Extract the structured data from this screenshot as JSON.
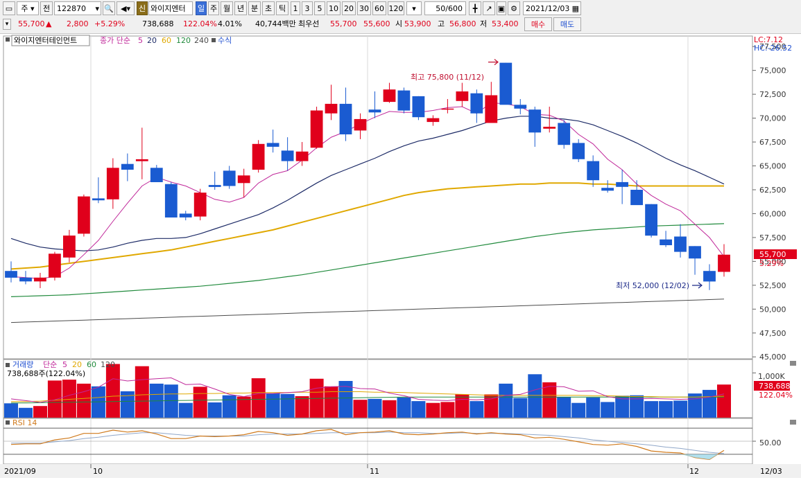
{
  "toolbar": {
    "market": "주",
    "prev": "전",
    "code": "122870",
    "sin": "신",
    "name": "와이지엔터",
    "periods": [
      "일",
      "주",
      "월",
      "년",
      "분",
      "초",
      "틱"
    ],
    "active_period": "일",
    "intervals": [
      "1",
      "3",
      "5",
      "10",
      "20",
      "30",
      "60",
      "120"
    ],
    "count": "50/600",
    "date": "2021/12/03",
    "buy": "매수",
    "sell": "매도"
  },
  "quote": {
    "price": "55,700",
    "arrow": "▲",
    "change": "2,800",
    "change_pct": "+5.29%",
    "volume": "738,688",
    "volume_pct": "122.04%",
    "turnover_pct": "4.01%",
    "amount": "40,744백만",
    "best_label": "최우선",
    "best_ask": "55,700",
    "best_bid": "55,600",
    "open_label": "시",
    "open": "53,900",
    "high_label": "고",
    "high": "56,800",
    "low_label": "저",
    "low": "53,400"
  },
  "price_panel": {
    "stock_label": "와이지엔터테인먼트",
    "indicator_label": "종가 단순",
    "ma_periods": [
      "5",
      "20",
      "60",
      "120",
      "240"
    ],
    "formula_label": "수식",
    "lc_label": "LC:7.12",
    "hc_label": "HC:-26.52",
    "current_price_label": "55,700",
    "current_pct_label": "5.29%",
    "high_annotation": "최고 75,800 (11/12)",
    "low_annotation": "최저 52,000 (12/02)"
  },
  "volume_panel": {
    "title": "거래량",
    "ma_label": "단순",
    "ma_periods": [
      "5",
      "20",
      "60",
      "120"
    ],
    "subtitle": "738,688주(122.04%)",
    "axis_label": "1,000K",
    "current_label": "738,688",
    "current_pct": "122.04%"
  },
  "rsi_panel": {
    "title": "RSI 14",
    "axis_label": "50.00"
  },
  "colors": {
    "up": "#e0001b",
    "down": "#1a5bd1",
    "ma5": "#c0289a",
    "ma20": "#1c2a66",
    "ma60": "#e0a800",
    "ma120": "#208a3c",
    "ma240": "#4a4a4a",
    "rsi": "#d07a1c"
  },
  "chart_data": {
    "type": "candlestick",
    "x_labels": [
      "2021/09",
      "10",
      "11",
      "12",
      "12/03"
    ],
    "y_ticks": [
      77500,
      75000,
      72500,
      70000,
      67500,
      65000,
      62500,
      60000,
      57500,
      55000,
      52500,
      50000,
      47500,
      45000
    ],
    "ylim": [
      44800,
      78600
    ],
    "candles": [
      {
        "o": 54000,
        "h": 55000,
        "l": 52800,
        "c": 53300
      },
      {
        "o": 53300,
        "h": 54000,
        "l": 52600,
        "c": 52900
      },
      {
        "o": 52900,
        "h": 53800,
        "l": 52200,
        "c": 53300
      },
      {
        "o": 53300,
        "h": 56000,
        "l": 53000,
        "c": 55800
      },
      {
        "o": 55400,
        "h": 58300,
        "l": 54900,
        "c": 57700
      },
      {
        "o": 57900,
        "h": 62000,
        "l": 57600,
        "c": 61800
      },
      {
        "o": 61600,
        "h": 63800,
        "l": 61100,
        "c": 61400
      },
      {
        "o": 61500,
        "h": 65800,
        "l": 60500,
        "c": 64800
      },
      {
        "o": 65200,
        "h": 66300,
        "l": 63400,
        "c": 64600
      },
      {
        "o": 65500,
        "h": 69000,
        "l": 63600,
        "c": 65700
      },
      {
        "o": 64800,
        "h": 65100,
        "l": 63300,
        "c": 63300
      },
      {
        "o": 63100,
        "h": 63300,
        "l": 59600,
        "c": 59600
      },
      {
        "o": 60000,
        "h": 60300,
        "l": 59300,
        "c": 59600
      },
      {
        "o": 59700,
        "h": 62600,
        "l": 59300,
        "c": 62200
      },
      {
        "o": 63000,
        "h": 64400,
        "l": 62500,
        "c": 62800
      },
      {
        "o": 64500,
        "h": 65000,
        "l": 62600,
        "c": 62900
      },
      {
        "o": 63200,
        "h": 64700,
        "l": 61700,
        "c": 64000
      },
      {
        "o": 64600,
        "h": 67700,
        "l": 64300,
        "c": 67300
      },
      {
        "o": 67400,
        "h": 68800,
        "l": 66400,
        "c": 67000
      },
      {
        "o": 66600,
        "h": 68000,
        "l": 64500,
        "c": 65500
      },
      {
        "o": 65500,
        "h": 67500,
        "l": 65000,
        "c": 66500
      },
      {
        "o": 66900,
        "h": 71200,
        "l": 66800,
        "c": 70800
      },
      {
        "o": 70500,
        "h": 73500,
        "l": 69800,
        "c": 71500
      },
      {
        "o": 71500,
        "h": 73200,
        "l": 67600,
        "c": 68300
      },
      {
        "o": 68700,
        "h": 70500,
        "l": 67800,
        "c": 69900
      },
      {
        "o": 70900,
        "h": 72800,
        "l": 70000,
        "c": 70600
      },
      {
        "o": 71700,
        "h": 73700,
        "l": 71600,
        "c": 73000
      },
      {
        "o": 72900,
        "h": 73200,
        "l": 70500,
        "c": 70800
      },
      {
        "o": 72300,
        "h": 72300,
        "l": 69800,
        "c": 70100
      },
      {
        "o": 69600,
        "h": 70300,
        "l": 69200,
        "c": 70000
      },
      {
        "o": 71000,
        "h": 72000,
        "l": 70500,
        "c": 71000
      },
      {
        "o": 71800,
        "h": 73700,
        "l": 71200,
        "c": 72800
      },
      {
        "o": 72600,
        "h": 73000,
        "l": 69500,
        "c": 70500
      },
      {
        "o": 69500,
        "h": 73800,
        "l": 69500,
        "c": 72400
      },
      {
        "o": 75800,
        "h": 75800,
        "l": 71700,
        "c": 71400
      },
      {
        "o": 71400,
        "h": 72000,
        "l": 70400,
        "c": 71000
      },
      {
        "o": 70900,
        "h": 71200,
        "l": 67000,
        "c": 68500
      },
      {
        "o": 68900,
        "h": 71200,
        "l": 68500,
        "c": 69100
      },
      {
        "o": 69500,
        "h": 69800,
        "l": 66800,
        "c": 67200
      },
      {
        "o": 67400,
        "h": 67800,
        "l": 65400,
        "c": 65700
      },
      {
        "o": 65500,
        "h": 66100,
        "l": 62800,
        "c": 63500
      },
      {
        "o": 62700,
        "h": 63500,
        "l": 62200,
        "c": 62400
      },
      {
        "o": 63300,
        "h": 64600,
        "l": 61000,
        "c": 62800
      },
      {
        "o": 62500,
        "h": 63500,
        "l": 60900,
        "c": 60900
      },
      {
        "o": 61000,
        "h": 61000,
        "l": 57500,
        "c": 57700
      },
      {
        "o": 57300,
        "h": 58200,
        "l": 56500,
        "c": 56700
      },
      {
        "o": 57600,
        "h": 58900,
        "l": 55400,
        "c": 56000
      },
      {
        "o": 56600,
        "h": 56600,
        "l": 53600,
        "c": 55300
      },
      {
        "o": 54000,
        "h": 54700,
        "l": 52000,
        "c": 52900
      },
      {
        "o": 53900,
        "h": 56800,
        "l": 53400,
        "c": 55700
      }
    ],
    "ma5": [
      53400,
      53300,
      53200,
      53400,
      54300,
      55700,
      57200,
      59200,
      61100,
      62900,
      63800,
      63300,
      62900,
      62200,
      61500,
      61200,
      61700,
      63200,
      64100,
      64500,
      65600,
      66900,
      68000,
      68600,
      69400,
      70100,
      70700,
      70600,
      70600,
      70800,
      71100,
      71200,
      70500,
      71600,
      71500,
      71200,
      70400,
      70300,
      69700,
      68300,
      67300,
      65700,
      64600,
      63100,
      61900,
      61000,
      60300,
      58900,
      57500,
      55500
    ],
    "ma20": [
      57400,
      56900,
      56500,
      56300,
      56200,
      56100,
      56200,
      56500,
      56900,
      57200,
      57400,
      57400,
      57500,
      57900,
      58400,
      58900,
      59400,
      59900,
      60600,
      61400,
      62300,
      63200,
      64000,
      64600,
      65200,
      65800,
      66500,
      67100,
      67600,
      67900,
      68300,
      68700,
      69200,
      69700,
      70000,
      70200,
      70200,
      70000,
      69900,
      69700,
      69300,
      68700,
      68100,
      67400,
      66600,
      65800,
      65100,
      64500,
      63800,
      63100
    ],
    "ma60": [
      54200,
      54300,
      54400,
      54600,
      54800,
      55000,
      55200,
      55400,
      55600,
      55800,
      56000,
      56200,
      56500,
      56800,
      57100,
      57400,
      57700,
      58000,
      58300,
      58700,
      59100,
      59500,
      59900,
      60300,
      60700,
      61100,
      61500,
      61900,
      62200,
      62400,
      62600,
      62700,
      62800,
      62900,
      63000,
      63100,
      63100,
      63200,
      63200,
      63200,
      63100,
      63100,
      63000,
      62900,
      62900,
      62900,
      62900,
      62900,
      62900,
      62900
    ],
    "ma120": [
      51300,
      51350,
      51400,
      51450,
      51500,
      51600,
      51700,
      51800,
      51900,
      52000,
      52100,
      52200,
      52300,
      52400,
      52550,
      52700,
      52850,
      53000,
      53200,
      53400,
      53600,
      53850,
      54100,
      54350,
      54600,
      54850,
      55100,
      55350,
      55600,
      55850,
      56100,
      56350,
      56600,
      56850,
      57100,
      57350,
      57600,
      57800,
      58000,
      58150,
      58300,
      58400,
      58500,
      58600,
      58700,
      58750,
      58800,
      58850,
      58900,
      58950
    ],
    "ma240": [
      48600,
      48650,
      48700,
      48750,
      48800,
      48850,
      48900,
      48950,
      49000,
      49050,
      49100,
      49150,
      49200,
      49250,
      49300,
      49350,
      49400,
      49450,
      49500,
      49550,
      49600,
      49650,
      49700,
      49750,
      49800,
      49850,
      49900,
      49950,
      50000,
      50050,
      50100,
      50150,
      50200,
      50250,
      50300,
      50350,
      50400,
      50450,
      50500,
      50550,
      50600,
      50650,
      50700,
      50750,
      50800,
      50850,
      50900,
      50950,
      51000,
      51050
    ],
    "volume_max": 1300,
    "volume": [
      320,
      220,
      260,
      830,
      850,
      760,
      700,
      1200,
      590,
      1150,
      760,
      740,
      330,
      690,
      340,
      500,
      470,
      880,
      540,
      530,
      480,
      870,
      700,
      820,
      400,
      420,
      390,
      450,
      370,
      330,
      350,
      520,
      370,
      520,
      760,
      440,
      970,
      790,
      460,
      330,
      450,
      350,
      490,
      500,
      370,
      370,
      380,
      540,
      620,
      740
    ],
    "vol_ma5": [
      420,
      380,
      340,
      400,
      500,
      580,
      680,
      870,
      820,
      850,
      870,
      890,
      740,
      750,
      640,
      520,
      470,
      540,
      540,
      560,
      580,
      660,
      690,
      700,
      650,
      640,
      550,
      490,
      410,
      390,
      380,
      410,
      400,
      420,
      500,
      520,
      620,
      700,
      690,
      590,
      600,
      470,
      420,
      420,
      430,
      420,
      410,
      420,
      460,
      530
    ],
    "vol_ma20": [
      360,
      360,
      370,
      390,
      410,
      430,
      450,
      480,
      490,
      510,
      520,
      530,
      530,
      540,
      540,
      550,
      550,
      560,
      560,
      560,
      570,
      570,
      580,
      580,
      580,
      570,
      570,
      560,
      550,
      540,
      530,
      520,
      510,
      500,
      500,
      500,
      500,
      500,
      500,
      500,
      490,
      490,
      480,
      470,
      470,
      460,
      460,
      460,
      470,
      480
    ],
    "vol_ma60": [
      330,
      330,
      335,
      340,
      345,
      350,
      355,
      360,
      365,
      370,
      375,
      380,
      385,
      390,
      395,
      400,
      405,
      410,
      415,
      420,
      425,
      430,
      435,
      440,
      445,
      450,
      455,
      460,
      460,
      460,
      460,
      460,
      460,
      460,
      460,
      460,
      460,
      460,
      460,
      460,
      460,
      460,
      460,
      460,
      460,
      460,
      460,
      460,
      460,
      460
    ],
    "rsi": [
      45,
      46,
      46,
      52,
      55,
      62,
      62,
      67,
      64,
      66,
      61,
      54,
      54,
      58,
      57,
      58,
      60,
      65,
      63,
      59,
      61,
      66,
      68,
      60,
      63,
      64,
      66,
      61,
      60,
      61,
      63,
      64,
      61,
      63,
      61,
      60,
      55,
      56,
      53,
      49,
      45,
      44,
      46,
      42,
      35,
      33,
      32,
      25,
      22,
      36
    ],
    "rsi_signal": [
      47,
      47,
      47,
      49,
      51,
      54,
      56,
      59,
      61,
      63,
      63,
      61,
      59,
      58,
      58,
      58,
      58,
      60,
      61,
      61,
      61,
      62,
      63,
      63,
      63,
      63,
      64,
      63,
      63,
      62,
      62,
      63,
      62,
      62,
      62,
      61,
      60,
      59,
      57,
      55,
      52,
      50,
      48,
      46,
      44,
      41,
      39,
      36,
      33,
      31
    ],
    "rsi_ylim": [
      15,
      85
    ]
  }
}
